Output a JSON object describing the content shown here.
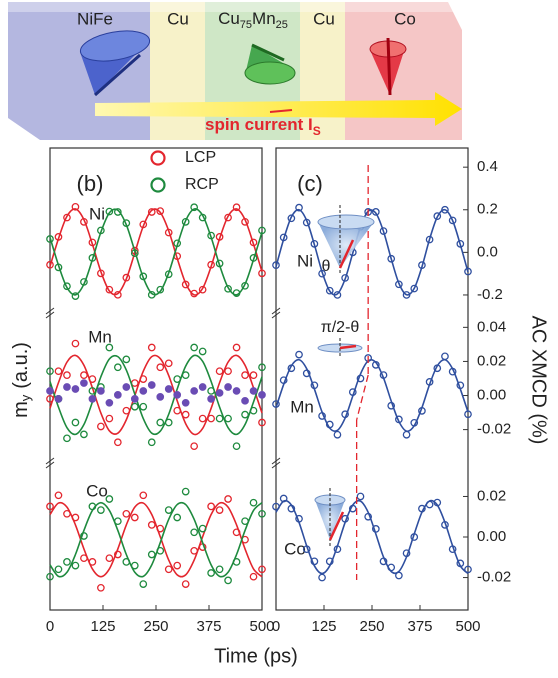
{
  "schematic": {
    "layers": [
      [
        "NiFe"
      ],
      [
        "Cu"
      ],
      [
        "Cu",
        "75",
        "Mn",
        "25"
      ],
      [
        "Cu"
      ],
      [
        "Co"
      ]
    ],
    "current_label": [
      "spin current I",
      "S"
    ]
  },
  "figure": {
    "xlabel": "Time (ps)",
    "ylabel": [
      "m",
      "y",
      "(a.u.)"
    ],
    "y2label": "AC XMCD (%)"
  },
  "chart_data": [
    {
      "type": "line",
      "label": "(b)",
      "legend_loc": "upper right",
      "x": [
        0,
        20,
        40,
        60,
        80,
        100,
        120,
        140,
        160,
        180,
        200,
        220,
        240,
        260,
        280,
        300,
        320,
        340,
        360,
        380,
        400,
        420,
        440,
        460,
        480,
        500
      ],
      "xlim": [
        0,
        500
      ],
      "xticks": [
        0,
        125,
        250,
        375,
        500
      ],
      "subplots": [
        {
          "label": "Ni",
          "ylim": [
            -1.4,
            2.42
          ],
          "series": [
            {
              "name": "LCP",
              "color": "#e3262e",
              "values": [
                -0.3,
                0.35,
                0.8,
                1.05,
                0.7,
                0.22,
                -0.5,
                -0.88,
                -1.0,
                -0.6,
                0.03,
                0.64,
                0.93,
                0.95,
                0.45,
                -0.1,
                -0.76,
                -0.97,
                -0.88,
                -0.3,
                0.35,
                0.8,
                1.04,
                0.7,
                0.22,
                -0.5
              ],
              "fit": [
                -0.34,
                0.31,
                0.83,
                1.0,
                0.75,
                0.18,
                -0.46,
                -0.91,
                -0.97,
                -0.63,
                -0.02,
                0.6,
                0.97,
                0.92,
                0.49,
                -0.15,
                -0.73,
                -1.0,
                -0.85,
                -0.34,
                0.31,
                0.83,
                1.0,
                0.75,
                0.18,
                -0.46
              ]
            },
            {
              "name": "RCP",
              "color": "#1e8a3e",
              "values": [
                0.3,
                -0.36,
                -0.8,
                -1.03,
                -0.7,
                -0.14,
                0.5,
                0.94,
                0.93,
                0.67,
                -0.03,
                -0.57,
                -1.0,
                -0.88,
                -0.52,
                0.2,
                0.7,
                1.04,
                0.8,
                0.38,
                -0.27,
                -0.86,
                -0.96,
                -0.79,
                -0.14,
                0.5
              ],
              "fit": [
                0.34,
                -0.31,
                -0.83,
                -1.0,
                -0.75,
                -0.18,
                0.46,
                0.91,
                0.97,
                0.63,
                0.02,
                -0.6,
                -0.97,
                -0.92,
                -0.49,
                0.15,
                0.73,
                1.0,
                0.85,
                0.34,
                -0.31,
                -0.83,
                -1.0,
                -0.75,
                -0.18,
                0.46
              ]
            }
          ]
        },
        {
          "label": "Mn",
          "ylim": [
            -1.7,
            2.1
          ],
          "series": [
            {
              "color": "#e3262e",
              "values": [
                -0.1,
                0.6,
                0.5,
                1.3,
                0.5,
                0.4,
                -0.8,
                -0.6,
                -1.2,
                -0.4,
                0.3,
                0.4,
                1.2,
                0.7,
                0.8,
                -0.4,
                -0.5,
                -1.3,
                -0.6,
                -0.6,
                0.6,
                0.6,
                1.2,
                0.5,
                0.5,
                -0.7
              ],
              "fit": [
                -0.34,
                0.31,
                0.83,
                1.0,
                0.75,
                0.18,
                -0.46,
                -0.91,
                -0.97,
                -0.63,
                -0.02,
                0.6,
                0.97,
                0.92,
                0.49,
                -0.15,
                -0.73,
                -1.0,
                -0.85,
                -0.34,
                0.31,
                0.83,
                1.0,
                0.75,
                0.18,
                -0.46
              ]
            },
            {
              "color": "#1e8a3e",
              "values": [
                0.6,
                -0.1,
                -1.1,
                -0.7,
                -1.0,
                0.1,
                0.2,
                1.2,
                0.7,
                0.9,
                -0.3,
                -0.3,
                -1.2,
                -0.7,
                -0.7,
                0.4,
                0.5,
                1.2,
                1.1,
                0.1,
                -0.6,
                -0.6,
                -1.3,
                -0.5,
                -0.4,
                0.7
              ],
              "fit": [
                0.34,
                -0.31,
                -0.83,
                -1.0,
                -0.75,
                -0.18,
                0.46,
                0.91,
                0.97,
                0.63,
                0.02,
                -0.6,
                -0.97,
                -0.92,
                -0.49,
                0.15,
                0.73,
                1.0,
                0.85,
                0.34,
                -0.31,
                -0.83,
                -1.0,
                -0.75,
                -0.18,
                0.46
              ]
            },
            {
              "color": "#6a4cb4",
              "filled": true,
              "values": [
                0.1,
                -0.1,
                0.2,
                0.15,
                0.3,
                -0.1,
                0.1,
                -0.2,
                0.0,
                0.2,
                -0.1,
                0.1,
                0.25,
                -0.05,
                0.15,
                0.0,
                -0.2,
                0.1,
                0.2,
                -0.1,
                0.05,
                0.2,
                0.1,
                -0.15,
                0.1,
                0.0
              ]
            }
          ]
        },
        {
          "label": "Co",
          "ylim": [
            -1.9,
            2.1
          ],
          "series": [
            {
              "color": "#e3262e",
              "values": [
                0.9,
                1.2,
                0.7,
                0.6,
                -0.5,
                -0.6,
                -1.3,
                -0.5,
                -0.4,
                0.7,
                0.6,
                1.2,
                0.4,
                0.3,
                -0.8,
                -0.7,
                -1.2,
                -0.3,
                -0.2,
                0.9,
                0.8,
                1.1,
                0.2,
                0.0,
                -1.0,
                -0.8
              ],
              "fit": [
                0.68,
                0.99,
                0.88,
                0.4,
                -0.25,
                -0.79,
                -1.0,
                -0.79,
                -0.25,
                0.4,
                0.88,
                0.99,
                0.68,
                0.08,
                -0.55,
                -0.95,
                -0.95,
                -0.55,
                0.08,
                0.68,
                0.99,
                0.88,
                0.4,
                -0.25,
                -0.79,
                -1.0
              ]
            },
            {
              "color": "#1e8a3e",
              "values": [
                -1.0,
                -0.8,
                -0.6,
                -0.7,
                0.1,
                0.9,
                0.8,
                1.1,
                0.5,
                -0.6,
                -0.7,
                -1.2,
                -0.4,
                -0.3,
                0.8,
                0.6,
                1.3,
                0.2,
                0.3,
                -0.9,
                -0.8,
                -1.1,
                -0.6,
                0.5,
                1.0,
                0.7
              ],
              "fit": [
                -0.68,
                -0.99,
                -0.88,
                -0.4,
                0.25,
                0.79,
                1.0,
                0.79,
                0.25,
                -0.4,
                -0.88,
                -0.99,
                -0.68,
                -0.08,
                0.55,
                0.95,
                0.95,
                0.55,
                -0.08,
                -0.68,
                -0.99,
                -0.88,
                -0.4,
                0.25,
                0.79,
                1.0
              ]
            }
          ]
        }
      ]
    },
    {
      "type": "line",
      "label": "(c)",
      "x": [
        0,
        20,
        40,
        60,
        80,
        100,
        120,
        140,
        160,
        180,
        200,
        220,
        240,
        260,
        280,
        300,
        320,
        340,
        360,
        380,
        400,
        420,
        440,
        460,
        480,
        500
      ],
      "xlim": [
        0,
        500
      ],
      "xticks": [
        0,
        125,
        250,
        375,
        500
      ],
      "subplots": [
        {
          "label": "Ni",
          "inset_label": "θ",
          "guide_x": 240,
          "ylim": [
            -0.28,
            0.49
          ],
          "yticks": [
            -0.2,
            {
              "value": 0,
              "label": "0.0"
            },
            0.2,
            0.4
          ],
          "series": [
            {
              "color": "#2f4f9f",
              "values": [
                -0.06,
                0.07,
                0.16,
                0.21,
                0.14,
                0.04,
                -0.1,
                -0.18,
                -0.2,
                -0.12,
                0.0,
                0.12,
                0.19,
                0.19,
                0.1,
                -0.03,
                -0.15,
                -0.2,
                -0.17,
                -0.06,
                0.06,
                0.17,
                0.2,
                0.15,
                0.04,
                -0.09
              ],
              "fit": [
                -0.068,
                0.062,
                0.166,
                0.2,
                0.149,
                0.036,
                -0.092,
                -0.182,
                -0.195,
                -0.125,
                -0.003,
                0.12,
                0.193,
                0.184,
                0.098,
                -0.03,
                -0.145,
                -0.199,
                -0.169,
                -0.068,
                0.062,
                0.166,
                0.2,
                0.149,
                0.036,
                -0.093
              ]
            }
          ]
        },
        {
          "label": "Mn",
          "inset_label": "π/2-θ",
          "guide_x": 240,
          "ylim": [
            -0.039,
            0.049
          ],
          "yticks": [
            -0.02,
            {
              "value": 0,
              "label": "0.00"
            },
            0.02,
            0.04
          ],
          "series": [
            {
              "color": "#2f4f9f",
              "values": [
                -0.005,
                0.009,
                0.016,
                0.024,
                0.013,
                0.006,
                -0.012,
                -0.017,
                -0.023,
                -0.011,
                0.002,
                0.01,
                0.022,
                0.018,
                0.012,
                -0.006,
                -0.014,
                -0.023,
                -0.016,
                -0.009,
                0.008,
                0.016,
                0.023,
                0.014,
                0.006,
                -0.011
              ],
              "fit": [
                -0.0071,
                0.0065,
                0.0174,
                0.021,
                0.0157,
                0.0038,
                -0.0097,
                -0.0191,
                -0.0204,
                -0.0132,
                -0.0003,
                0.0126,
                0.0203,
                0.0194,
                0.0103,
                -0.0032,
                -0.0152,
                -0.0209,
                -0.0177,
                -0.0071,
                0.0065,
                0.0174,
                0.021,
                0.0156,
                0.0038,
                -0.0097
              ]
            }
          ]
        },
        {
          "label": "Co",
          "guide_x": 210,
          "ylim": [
            -0.036,
            0.037
          ],
          "yticks": [
            -0.02,
            {
              "value": 0,
              "label": "0.00"
            },
            0.02
          ],
          "series": [
            {
              "color": "#2f4f9f",
              "values": [
                0.015,
                0.019,
                0.014,
                0.009,
                -0.006,
                -0.012,
                -0.02,
                -0.012,
                -0.006,
                0.009,
                0.014,
                0.02,
                0.01,
                0.004,
                -0.012,
                -0.015,
                -0.019,
                -0.008,
                0.0,
                0.014,
                0.016,
                0.017,
                0.006,
                -0.006,
                -0.013,
                -0.016
              ],
              "fit": [
                0.0122,
                0.0177,
                0.0158,
                0.0072,
                -0.0044,
                -0.0142,
                -0.018,
                -0.0142,
                -0.0044,
                0.0072,
                0.0158,
                0.0177,
                0.0122,
                0.0015,
                -0.0099,
                -0.017,
                -0.017,
                -0.0098,
                0.0015,
                0.0122,
                0.0178,
                0.0158,
                0.0072,
                -0.0044,
                -0.0142,
                -0.018
              ]
            }
          ]
        }
      ]
    }
  ]
}
